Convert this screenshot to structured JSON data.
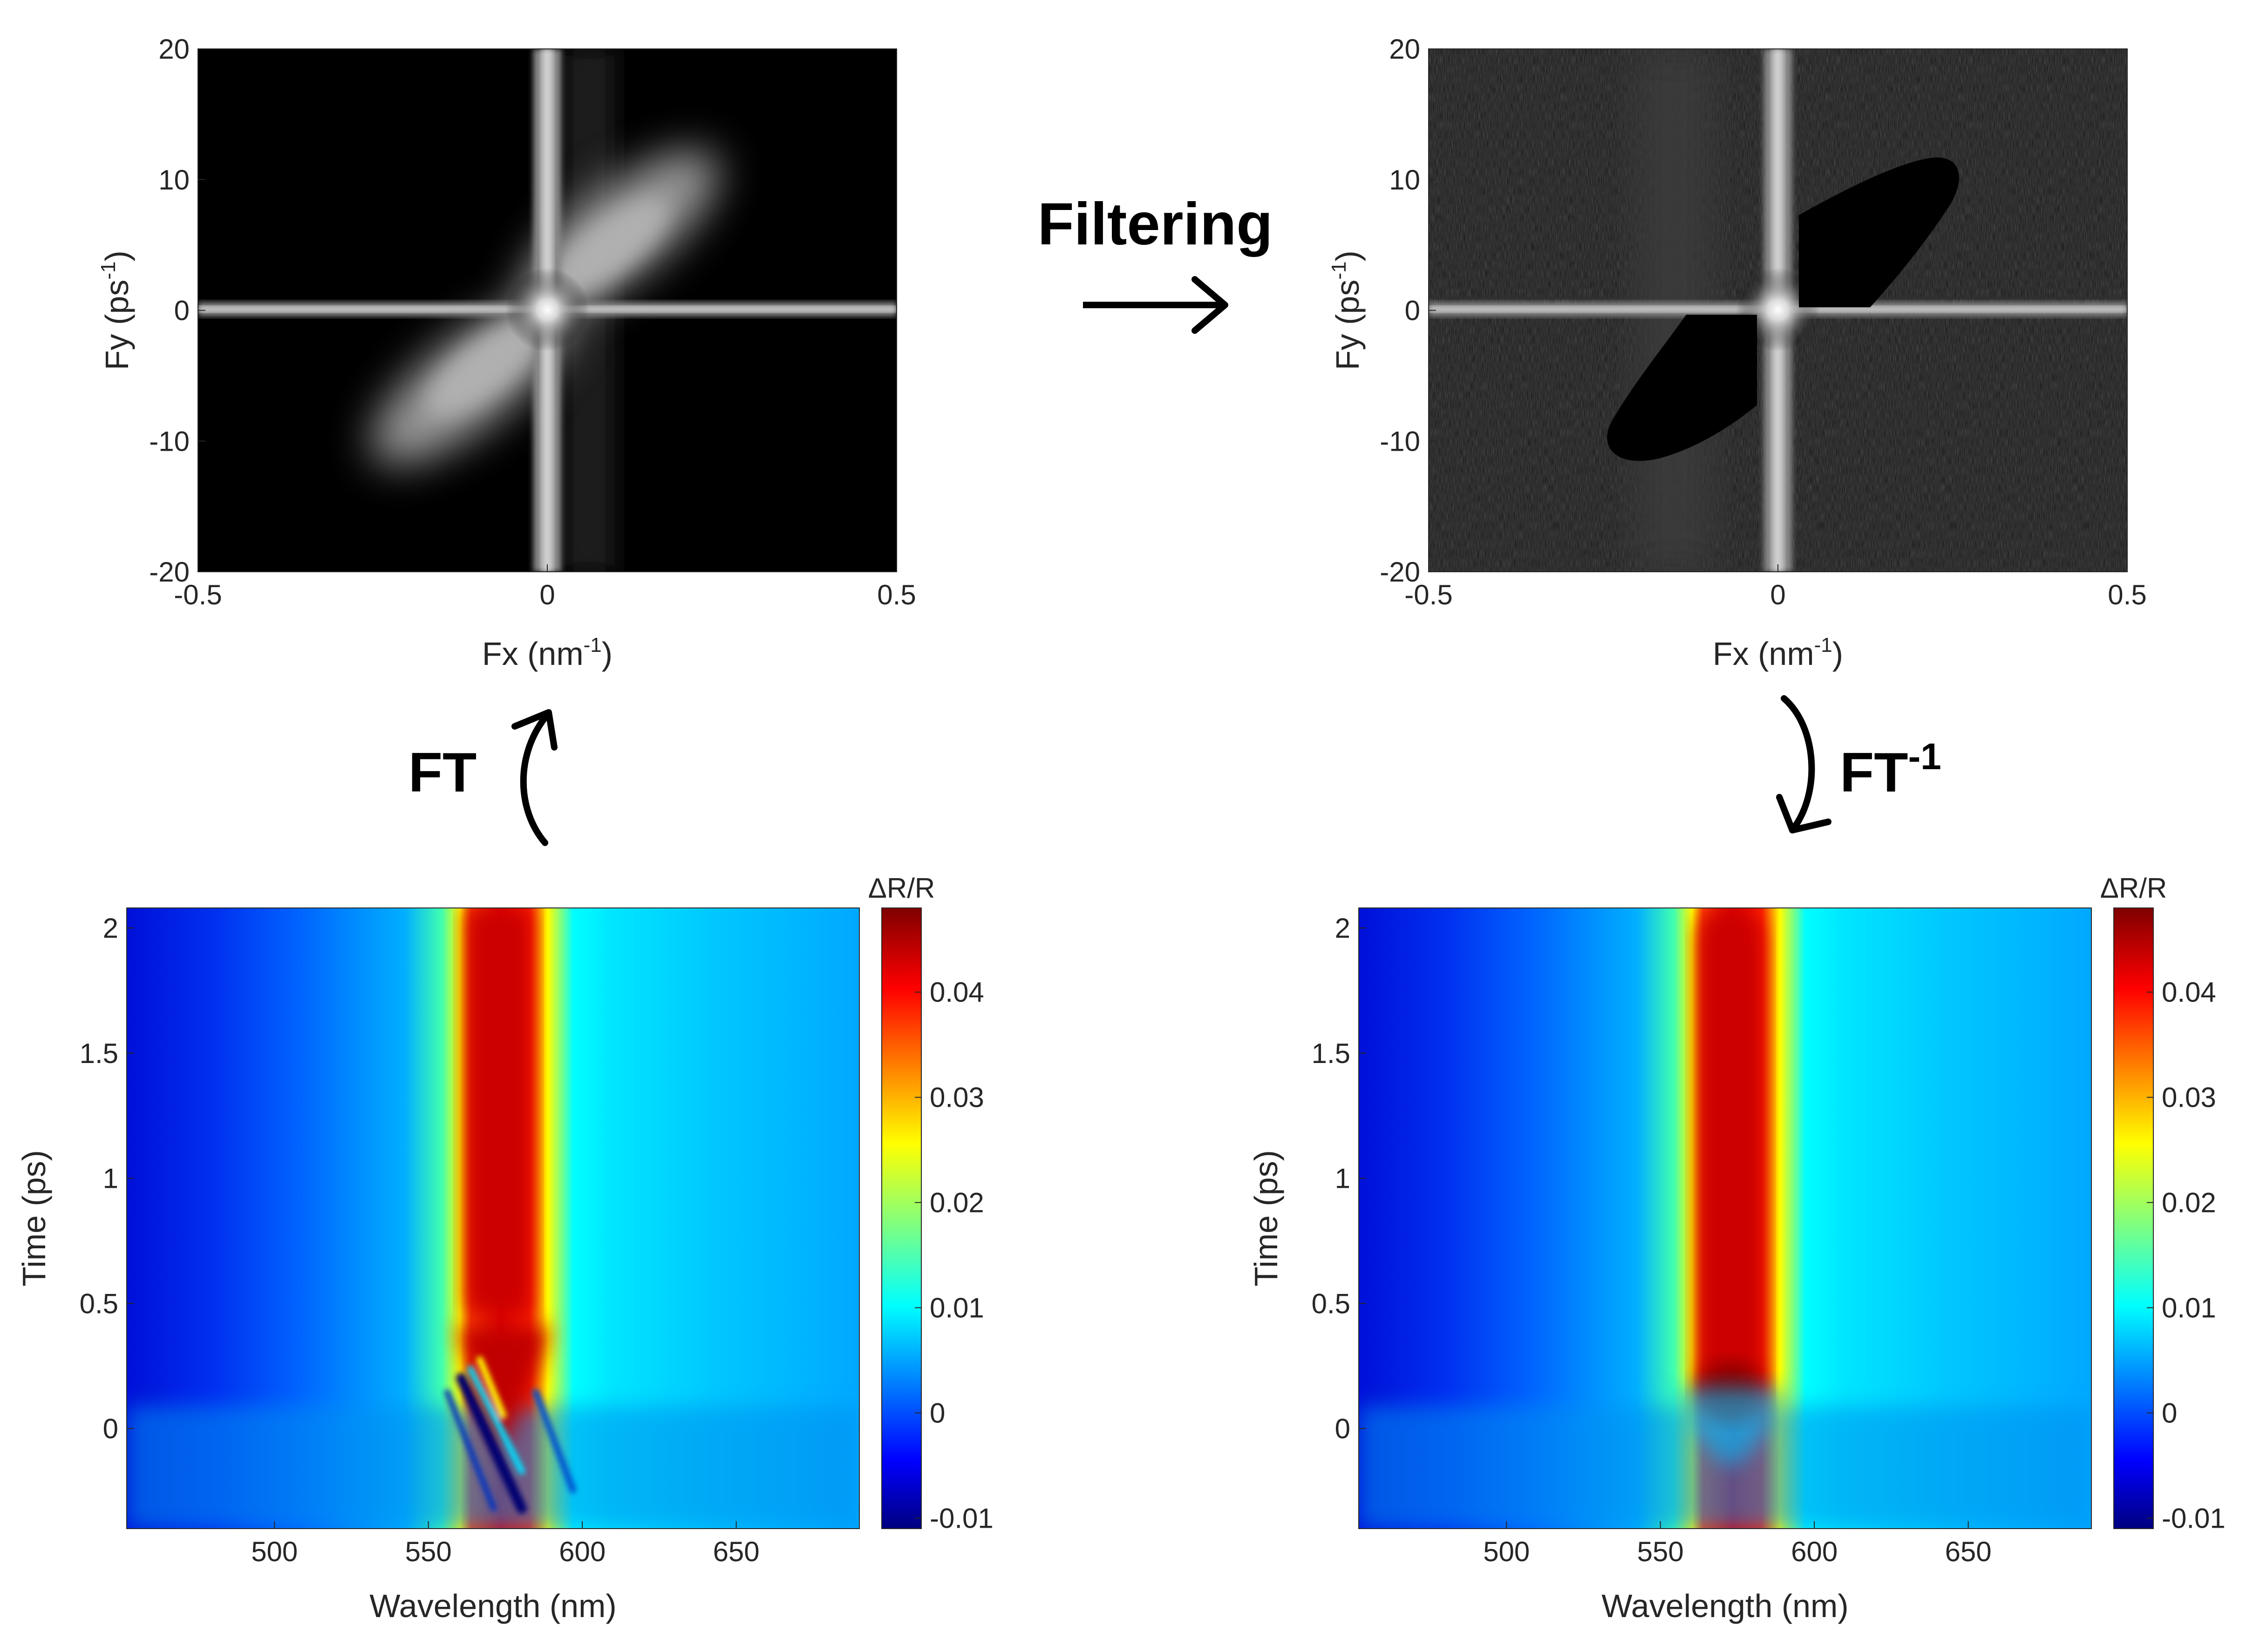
{
  "flow_labels": {
    "filtering": "Filtering",
    "ft": "FT",
    "ift_base": "FT",
    "ift_sup": "-1"
  },
  "chart_data": [
    {
      "id": "fft-original",
      "type": "heatmap",
      "xlabel_base": "Fx (nm",
      "xlabel_sup": "-1",
      "xlabel_end": ")",
      "ylabel_base": "Fy (ps",
      "ylabel_sup": "-1",
      "ylabel_end": ")",
      "xlim": [
        -0.5,
        0.5
      ],
      "ylim": [
        -20,
        20
      ],
      "xticks": [
        -0.5,
        0,
        0.5
      ],
      "xtick_labels": [
        "-0.5",
        "0",
        "0.5"
      ],
      "yticks": [
        -20,
        -10,
        0,
        10,
        20
      ],
      "ytick_labels": [
        "-20",
        "-10",
        "0",
        "10",
        "20"
      ],
      "colormap": "gray",
      "filtered": false
    },
    {
      "id": "fft-filtered",
      "type": "heatmap",
      "xlabel_base": "Fx (nm",
      "xlabel_sup": "-1",
      "xlabel_end": ")",
      "ylabel_base": "Fy (ps",
      "ylabel_sup": "-1",
      "ylabel_end": ")",
      "xlim": [
        -0.5,
        0.5
      ],
      "ylim": [
        -20,
        20
      ],
      "xticks": [
        -0.5,
        0,
        0.5
      ],
      "xtick_labels": [
        "-0.5",
        "0",
        "0.5"
      ],
      "yticks": [
        -20,
        -10,
        0,
        10,
        20
      ],
      "ytick_labels": [
        "-20",
        "-10",
        "0",
        "10",
        "20"
      ],
      "colormap": "gray",
      "filtered": true
    },
    {
      "id": "map-raw",
      "type": "heatmap",
      "xlabel": "Wavelength (nm)",
      "ylabel": "Time (ps)",
      "xlim": [
        452,
        690
      ],
      "ylim": [
        -0.4,
        2.08
      ],
      "xticks": [
        500,
        550,
        600,
        650
      ],
      "xtick_labels": [
        "500",
        "550",
        "600",
        "650"
      ],
      "yticks": [
        0,
        0.5,
        1,
        1.5,
        2
      ],
      "ytick_labels": [
        "0",
        "0.5",
        "1",
        "1.5",
        "2"
      ],
      "colorbar": {
        "label": "ΔR/R",
        "range": [
          -0.011,
          0.048
        ],
        "ticks": [
          -0.01,
          0,
          0.01,
          0.02,
          0.03,
          0.04
        ],
        "tick_labels": [
          "-0.01",
          "0",
          "0.01",
          "0.02",
          "0.03",
          "0.04"
        ],
        "colormap": "jet"
      },
      "peak_wavelength_nm": 572,
      "filtered": false
    },
    {
      "id": "map-filtered",
      "type": "heatmap",
      "xlabel": "Wavelength (nm)",
      "ylabel": "Time (ps)",
      "xlim": [
        452,
        690
      ],
      "ylim": [
        -0.4,
        2.08
      ],
      "xticks": [
        500,
        550,
        600,
        650
      ],
      "xtick_labels": [
        "500",
        "550",
        "600",
        "650"
      ],
      "yticks": [
        0,
        0.5,
        1,
        1.5,
        2
      ],
      "ytick_labels": [
        "0",
        "0.5",
        "1",
        "1.5",
        "2"
      ],
      "colorbar": {
        "label": "ΔR/R",
        "range": [
          -0.011,
          0.048
        ],
        "ticks": [
          -0.01,
          0,
          0.01,
          0.02,
          0.03,
          0.04
        ],
        "tick_labels": [
          "-0.01",
          "0",
          "0.01",
          "0.02",
          "0.03",
          "0.04"
        ],
        "colormap": "jet"
      },
      "peak_wavelength_nm": 572,
      "filtered": true
    }
  ]
}
